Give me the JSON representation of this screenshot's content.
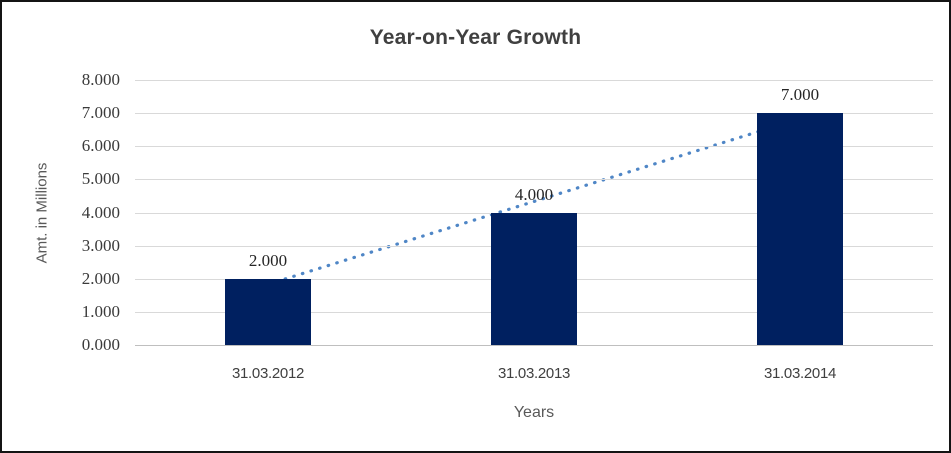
{
  "chart_data": {
    "type": "bar",
    "title": "Year-on-Year Growth",
    "xlabel": "Years",
    "ylabel": "Amt. in Millions",
    "categories": [
      "31.03.2012",
      "31.03.2013",
      "31.03.2014"
    ],
    "values": [
      2,
      4,
      7
    ],
    "value_labels": [
      "2.000",
      "4.000",
      "7.000"
    ],
    "ylim": [
      0,
      8
    ],
    "y_ticks": [
      0,
      1,
      2,
      3,
      4,
      5,
      6,
      7,
      8
    ],
    "y_tick_labels": [
      "0.000",
      "1.000",
      "2.000",
      "3.000",
      "4.000",
      "5.000",
      "6.000",
      "7.000",
      "8.000"
    ],
    "grid": "horizontal",
    "legend": "none",
    "trendline": {
      "type": "linear",
      "style": "dotted",
      "start_value": 1.833,
      "end_value": 6.833
    },
    "colors": {
      "bar": "#002060",
      "trendline": "#4f86c6",
      "gridline": "#d9d9d9",
      "axis_line": "#bfbfbf",
      "title_text": "#404040",
      "tick_text": "#3a3a3a",
      "axis_title_text": "#595959"
    }
  }
}
